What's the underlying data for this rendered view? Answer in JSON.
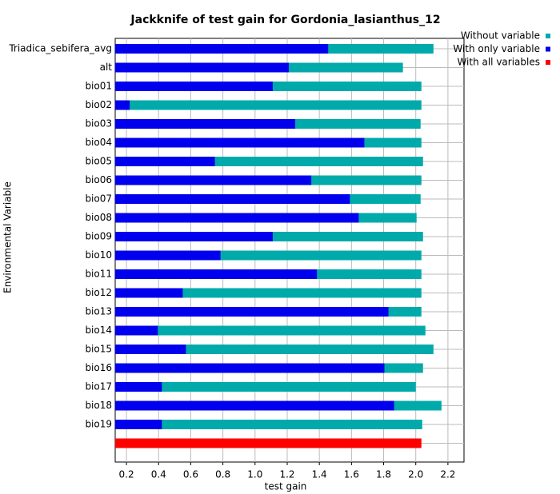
{
  "chart_data": {
    "type": "bar",
    "orientation": "horizontal",
    "title": "Jackknife of test gain for Gordonia_lasianthus_12",
    "x_label": "test gain",
    "y_label": "Environmental Variable",
    "categories": [
      "Triadica_sebifera_avg",
      "alt",
      "bio01",
      "bio02",
      "bio03",
      "bio04",
      "bio05",
      "bio06",
      "bio07",
      "bio08",
      "bio09",
      "bio10",
      "bio11",
      "bio12",
      "bio13",
      "bio14",
      "bio15",
      "bio16",
      "bio17",
      "bio18",
      "bio19",
      null
    ],
    "series": [
      {
        "name": "Without variable",
        "color": "#00aaaa",
        "values": [
          2.11,
          1.92,
          2.035,
          2.035,
          2.03,
          2.035,
          2.045,
          2.035,
          2.03,
          2.005,
          2.045,
          2.035,
          2.035,
          2.035,
          2.035,
          2.06,
          2.11,
          2.045,
          2.0,
          2.16,
          2.04,
          null
        ]
      },
      {
        "name": "With only variable",
        "color": "#0000ee",
        "values": [
          1.455,
          1.21,
          1.11,
          0.22,
          1.25,
          1.68,
          0.75,
          1.35,
          1.59,
          1.645,
          1.11,
          0.785,
          1.385,
          0.55,
          1.83,
          0.395,
          0.57,
          1.805,
          0.42,
          1.865,
          0.42,
          null
        ]
      },
      {
        "name": "With all variables",
        "color": "#ff0000",
        "values": [
          null,
          null,
          null,
          null,
          null,
          null,
          null,
          null,
          null,
          null,
          null,
          null,
          null,
          null,
          null,
          null,
          null,
          null,
          null,
          null,
          null,
          2.035
        ]
      }
    ],
    "xlim": [
      0.13,
      2.3
    ],
    "xticks": [
      0.2,
      0.4,
      0.6,
      0.8,
      {
        "value": 1,
        "label": "1.0"
      },
      1.2,
      1.4,
      1.6,
      1.8,
      {
        "value": 2,
        "label": "2.0"
      },
      2.2
    ],
    "grid": true,
    "legend": "top-right"
  }
}
